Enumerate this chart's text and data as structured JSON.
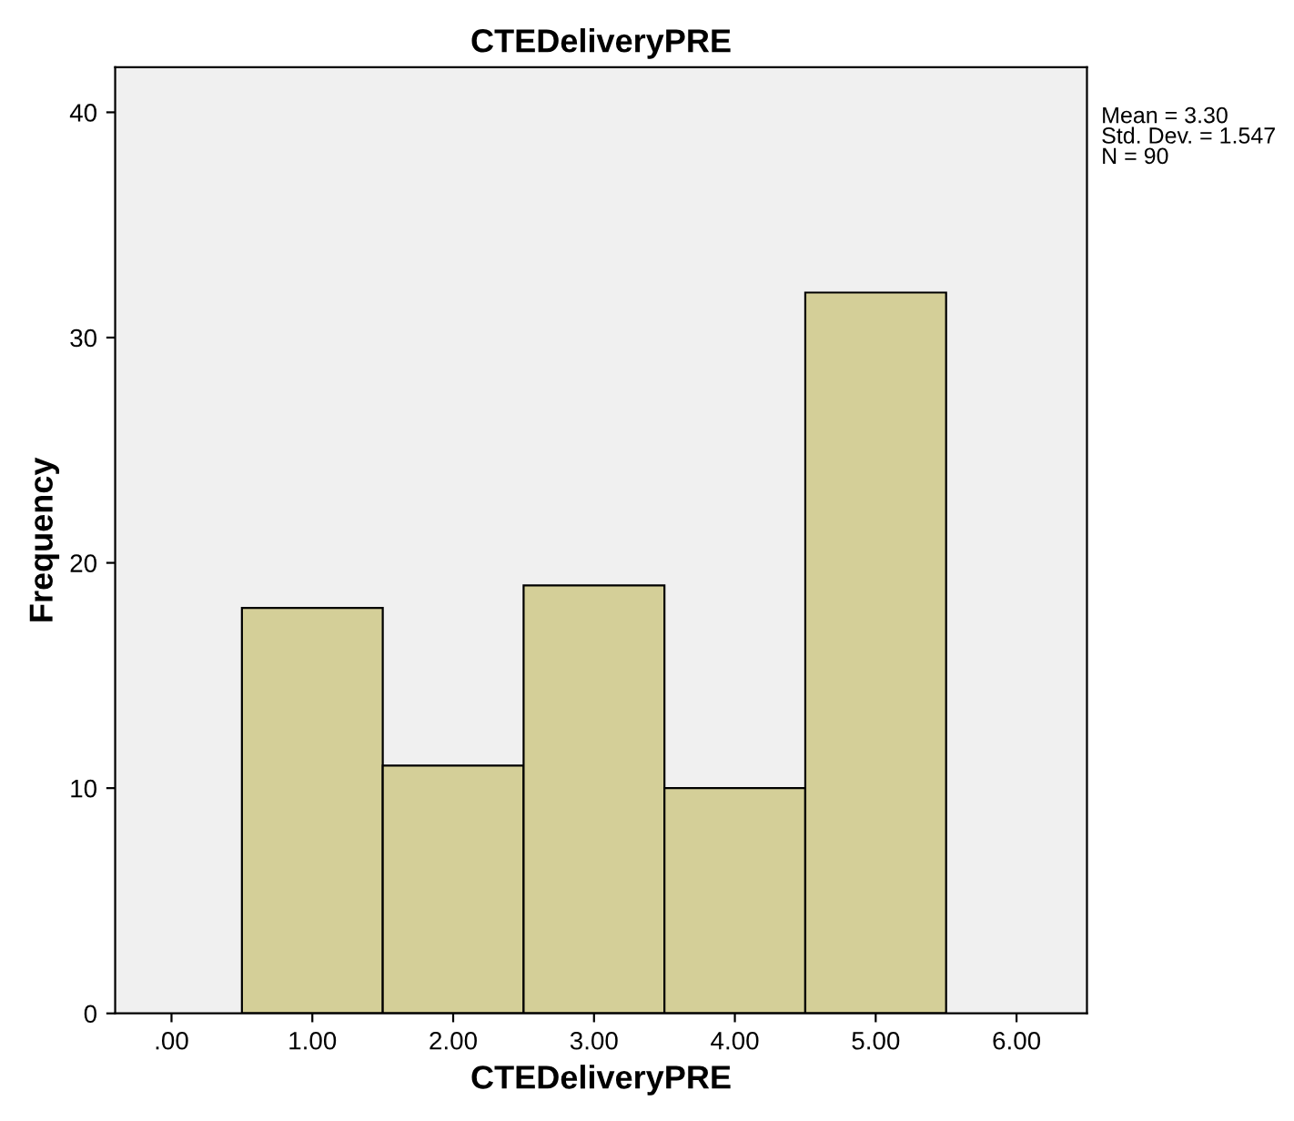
{
  "chart_data": {
    "type": "histogram",
    "title": "CTEDeliveryPRE",
    "xlabel": "CTEDeliveryPRE",
    "ylabel": "Frequency",
    "bins": [
      0.5,
      1.5,
      2.5,
      3.5,
      4.5,
      5.5
    ],
    "values": [
      18,
      11,
      19,
      10,
      32
    ],
    "color": "#d4cf98",
    "xlim": [
      -0.4,
      6.5
    ],
    "xticks": [
      {
        "value": 0,
        "label": ".00"
      },
      {
        "value": 1,
        "label": "1.00"
      },
      {
        "value": 2,
        "label": "2.00"
      },
      {
        "value": 3,
        "label": "3.00"
      },
      {
        "value": 4,
        "label": "4.00"
      },
      {
        "value": 5,
        "label": "5.00"
      },
      {
        "value": 6,
        "label": "6.00"
      }
    ],
    "ylim": [
      0,
      42
    ],
    "yticks": [
      0,
      10,
      20,
      30,
      40
    ],
    "grid": false,
    "annotations": [
      "Mean = 3.30\nStd. Dev. = 1.547\nN = 90"
    ]
  }
}
